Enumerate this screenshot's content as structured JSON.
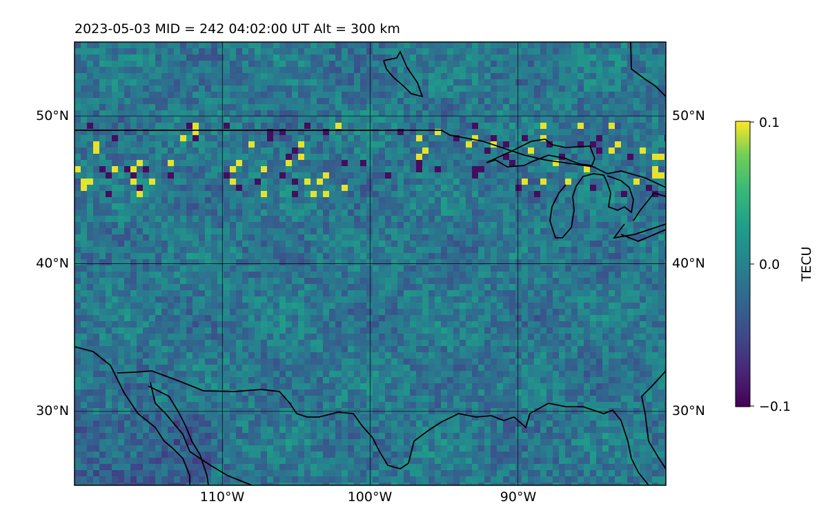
{
  "map": {
    "title": "2023-05-03  MID = 242    04:02:00  UT  Alt = 300 km",
    "lon_range": [
      -120,
      -80
    ],
    "lat_range": [
      25,
      55
    ],
    "lon_ticks": [
      {
        "value": -110,
        "label": "110°W"
      },
      {
        "value": -100,
        "label": "100°W"
      },
      {
        "value": -90,
        "label": "90°W"
      }
    ],
    "lat_ticks": [
      {
        "value": 50,
        "label": "50°N"
      },
      {
        "value": 40,
        "label": "40°N"
      },
      {
        "value": 30,
        "label": "30°N"
      }
    ],
    "gridlines": true,
    "colormap": "viridis",
    "colors": {
      "low": "#440154",
      "mid": "#21918c",
      "high": "#fde725",
      "coastline": "#000000"
    }
  },
  "colorbar": {
    "label": "TECU",
    "min": -0.1,
    "max": 0.1,
    "ticks": [
      {
        "value": 0.1,
        "label": "0.1"
      },
      {
        "value": 0.0,
        "label": "0.0"
      },
      {
        "value": -0.1,
        "label": "−0.1"
      }
    ]
  }
}
